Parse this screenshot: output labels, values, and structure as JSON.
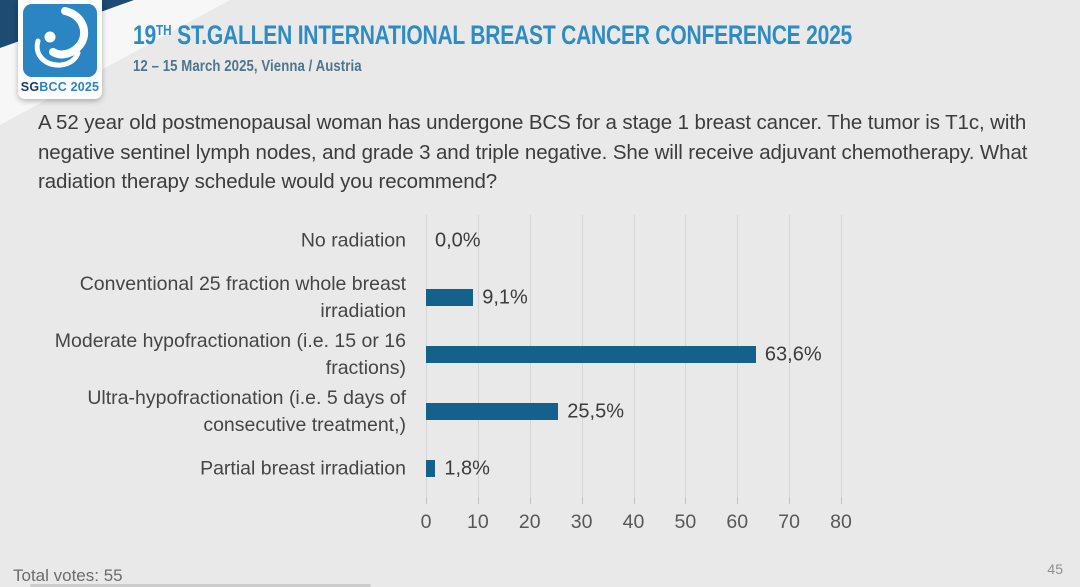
{
  "header": {
    "logo": {
      "sg": "SG",
      "bcc": "BCC 2025"
    },
    "title_num": "19",
    "title_sup": "TH",
    "title_rest": " ST.GALLEN INTERNATIONAL BREAST CANCER CONFERENCE 2025",
    "subtitle": "12 – 15 March 2025, Vienna / Austria"
  },
  "question": "A 52 year old postmenopausal woman has undergone BCS for a stage 1 breast cancer.  The tumor is T1c, with negative sentinel lymph nodes, and grade 3 and triple negative.  She will receive adjuvant chemotherapy. What radiation therapy schedule would you recommend?",
  "chart_data": {
    "type": "bar",
    "orientation": "horizontal",
    "title": "",
    "categories": [
      "No radiation",
      "Conventional 25 fraction whole breast irradiation",
      "Moderate hypofractionation (i.e. 15 or 16 fractions)",
      "Ultra-hypofractionation (i.e. 5 days of consecutive treatment,)",
      "Partial breast irradiation"
    ],
    "values": [
      0.0,
      9.1,
      63.6,
      25.5,
      1.8
    ],
    "value_labels": [
      "0,0%",
      "9,1%",
      "63,6%",
      "25,5%",
      "1,8%"
    ],
    "xlim": [
      0,
      80
    ],
    "x_ticks": [
      0,
      10,
      20,
      30,
      40,
      50,
      60,
      70,
      80
    ],
    "grid": true,
    "legend": "none",
    "bar_color": "#14628c"
  },
  "footer": {
    "total_votes": "Total votes: 55",
    "page_number": "45"
  },
  "colors": {
    "accent_blue": "#2e8cc3",
    "navy": "#1d4b72",
    "logo_blue": "#2b85c2",
    "bar": "#14628c",
    "background": "#e9e9e9"
  }
}
